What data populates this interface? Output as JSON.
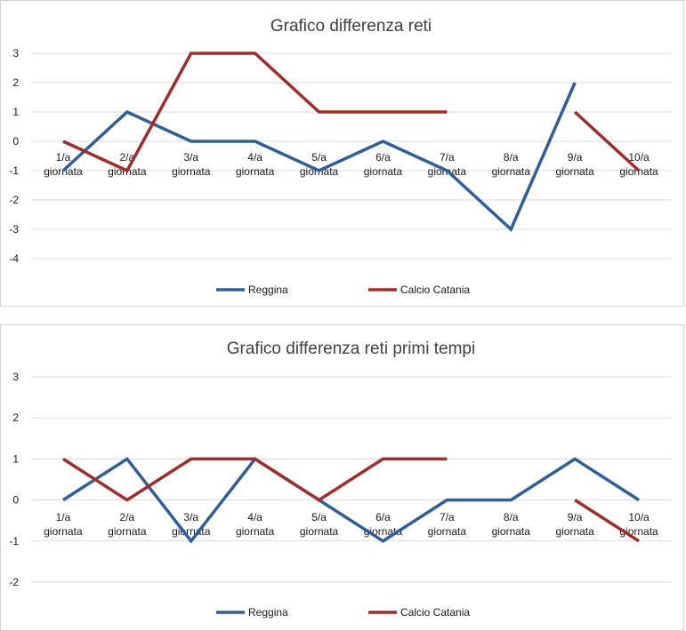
{
  "chart_data": [
    {
      "type": "line",
      "title": "Grafico differenza reti",
      "categories": [
        "1/a giornata",
        "2/a giornata",
        "3/a giornata",
        "4/a giornata",
        "5/a giornata",
        "6/a giornata",
        "7/a giornata",
        "8/a giornata",
        "9/a giornata",
        "10/a giornata"
      ],
      "ylim": [
        -4,
        3
      ],
      "yticks": [
        3,
        2,
        1,
        0,
        -1,
        -2,
        -3,
        -4
      ],
      "grid": true,
      "legend_position": "bottom",
      "series": [
        {
          "name": "Reggina",
          "color": "#2e5e9c",
          "values": [
            -1,
            1,
            0,
            0,
            -1,
            0,
            -1,
            -3,
            2,
            null
          ]
        },
        {
          "name": "Calcio Catania",
          "color": "#a52a2a",
          "values": [
            0,
            -1,
            3,
            3,
            1,
            1,
            1,
            null,
            1,
            -1
          ]
        }
      ]
    },
    {
      "type": "line",
      "title": "Grafico differenza reti primi tempi",
      "categories": [
        "1/a giornata",
        "2/a giornata",
        "3/a giornata",
        "4/a giornata",
        "5/a giornata",
        "6/a giornata",
        "7/a giornata",
        "8/a giornata",
        "9/a giornata",
        "10/a giornata"
      ],
      "ylim": [
        -2,
        3
      ],
      "yticks": [
        3,
        2,
        1,
        0,
        -1,
        -2
      ],
      "grid": true,
      "legend_position": "bottom",
      "series": [
        {
          "name": "Reggina",
          "color": "#2e5e9c",
          "values": [
            0,
            1,
            -1,
            1,
            0,
            -1,
            0,
            0,
            1,
            0
          ]
        },
        {
          "name": "Calcio Catania",
          "color": "#a52a2a",
          "values": [
            1,
            0,
            1,
            1,
            0,
            1,
            1,
            null,
            0,
            -1
          ]
        }
      ]
    }
  ]
}
